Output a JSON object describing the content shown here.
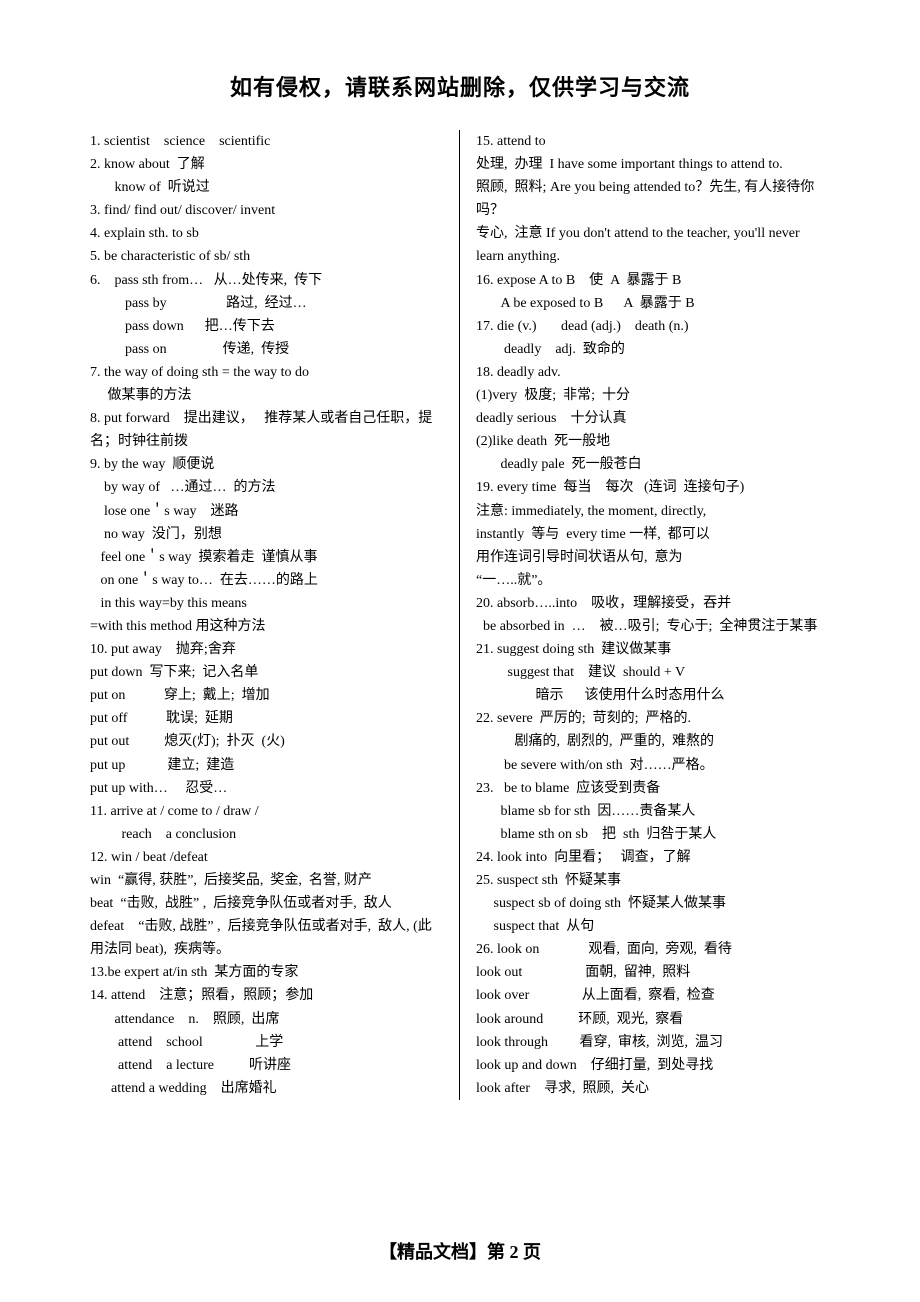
{
  "header": "如有侵权，请联系网站删除，仅供学习与交流",
  "footer": "【精品文档】第 2 页",
  "left": [
    "1. scientist    science    scientific",
    "2. know about  了解",
    "       know of  听说过",
    "3. find/ find out/ discover/ invent",
    "4. explain sth. to sb",
    "5. be characteristic of sb/ sth",
    "6.    pass sth from…   从…处传来,  传下",
    "          pass by                 路过,  经过…",
    "          pass down      把…传下去",
    "          pass on                传递,  传授",
    "7. the way of doing sth = the way to do",
    "     做某事的方法",
    "8. put forward    提出建议，   推荐某人或者自己任职，提名；时钟往前拨",
    "9. by the way  顺便说",
    "    by way of   …通过…  的方法",
    "    lose one＇s way    迷路",
    "    no way  没门，别想",
    "   feel one＇s way  摸索着走  谨慎从事",
    "   on one＇s way to…  在去……的路上",
    "   in this way=by this means",
    "=with this method 用这种方法",
    "10. put away    抛弃;舍弃",
    "put down  写下来;  记入名单",
    "put on           穿上;  戴上;  增加",
    "put off           耽误;  延期",
    "put out          熄灭(灯);  扑灭  (火)",
    "put up            建立;  建造",
    "put up with…     忍受…",
    "11. arrive at / come to / draw /",
    "         reach    a conclusion",
    "12. win / beat /defeat",
    "win  “赢得, 获胜”,  后接奖品,  奖金,  名誉, 财产",
    "beat  “击败,  战胜” ,  后接竞争队伍或者对手,  敌人",
    "defeat    “击败, 战胜” ,  后接竞争队伍或者对手,  敌人, (此用法同 beat),  疾病等。",
    "13.be expert at/in sth  某方面的专家",
    "14. attend    注意；照看，照顾；参加",
    "       attendance    n.    照顾,  出席",
    "        attend    school               上学",
    "        attend    a lecture          听讲座",
    "      attend a wedding    出席婚礼"
  ],
  "right": [
    "15. attend to",
    "处理,  办理  I have some important things to attend to.",
    "照顾,  照料; Are you being attended to？先生, 有人接待你吗？",
    "专心,  注意 If you don't attend to the teacher, you'll never learn anything.",
    "16. expose A to B    使  A  暴露于 B",
    "       A be exposed to B      A  暴露于 B",
    "17. die (v.)       dead (adj.)    death (n.)",
    "        deadly    adj.  致命的",
    "18. deadly adv.",
    "(1)very  极度;  非常;  十分",
    "deadly serious    十分认真",
    "(2)like death  死一般地",
    "       deadly pale  死一般苍白",
    "19. every time  每当    每次   (连词  连接句子)",
    "注意: immediately, the moment, directly,",
    "instantly  等与  every time 一样,  都可以",
    "用作连词引导时间状语从句,  意为",
    "“一…..就”。",
    "20. absorb…..into    吸收，理解接受，吞并",
    "  be absorbed in  …    被…吸引;  专心于;  全神贯注于某事",
    "21. suggest doing sth  建议做某事",
    "         suggest that    建议  should + V",
    "                 暗示      该使用什么时态用什么",
    "22. severe  严厉的;  苛刻的;  严格的.",
    "           剧痛的,  剧烈的,  严重的,  难熬的",
    "        be severe with/on sth  对……严格。",
    "23.   be to blame  应该受到责备",
    "       blame sb for sth  因……责备某人",
    "       blame sth on sb    把  sth  归咎于某人",
    "24. look into  向里看；   调查，了解",
    "25. suspect sth  怀疑某事",
    "     suspect sb of doing sth  怀疑某人做某事",
    "     suspect that  从句",
    "26. look on              观看,  面向,  旁观,  看待",
    "look out                  面朝,  留神,  照料",
    "look over               从上面看,  察看,  检查",
    "look around          环顾,  观光,  察看",
    "look through         看穿,  审核,  浏览,  温习",
    "look up and down    仔细打量,  到处寻找",
    "look after    寻求,  照顾,  关心"
  ]
}
